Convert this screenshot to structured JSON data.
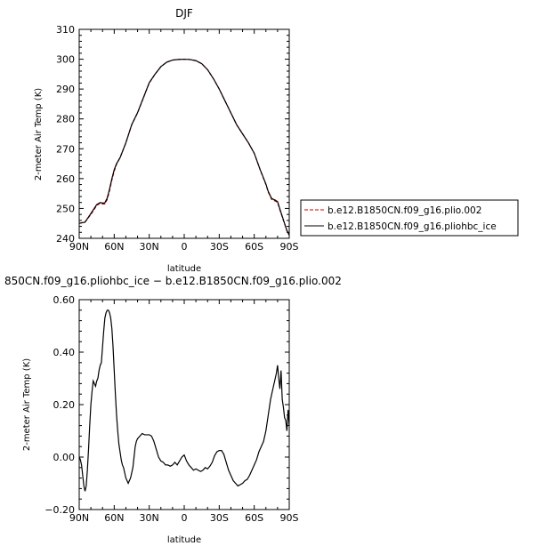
{
  "chart_data": [
    {
      "type": "line",
      "title": "DJF",
      "xlabel": "latitude",
      "ylabel": "2-meter Air Temp (K)",
      "xlim": [
        90,
        -90
      ],
      "ylim": [
        240,
        310
      ],
      "x_ticks": [
        {
          "value": 90,
          "label": "90N"
        },
        {
          "value": 60,
          "label": "60N"
        },
        {
          "value": 30,
          "label": "30N"
        },
        {
          "value": 0,
          "label": "0"
        },
        {
          "value": -30,
          "label": "30S"
        },
        {
          "value": -60,
          "label": "60S"
        },
        {
          "value": -90,
          "label": "90S"
        }
      ],
      "y_ticks": [
        240,
        250,
        260,
        270,
        280,
        290,
        300,
        310
      ],
      "grid": false,
      "legend_position": "right",
      "series": [
        {
          "name": "b.e12.B1850CN.f09_g16.plio.002",
          "color": "#cc0000",
          "dash": "dashed",
          "x": [
            90,
            85,
            80,
            75,
            72,
            70,
            68,
            66,
            64,
            62,
            60,
            58,
            55,
            50,
            45,
            40,
            35,
            30,
            25,
            20,
            15,
            10,
            5,
            0,
            -5,
            -10,
            -15,
            -20,
            -25,
            -30,
            -35,
            -40,
            -45,
            -50,
            -55,
            -60,
            -65,
            -70,
            -72,
            -75,
            -78,
            -80,
            -82,
            -85,
            -88,
            -90
          ],
          "y": [
            245.0,
            245.5,
            248.0,
            251.0,
            251.8,
            251.5,
            251.5,
            253.0,
            256.0,
            259.5,
            262.5,
            264.8,
            267.0,
            272.0,
            278.0,
            282.0,
            287.0,
            292.0,
            295.0,
            297.5,
            299.0,
            299.7,
            299.9,
            300.0,
            299.9,
            299.5,
            298.5,
            296.5,
            293.5,
            290.0,
            286.0,
            282.0,
            278.0,
            275.0,
            272.0,
            268.5,
            263.0,
            258.0,
            255.5,
            253.0,
            252.5,
            252.0,
            249.5,
            246.0,
            242.5,
            241.0
          ]
        },
        {
          "name": "b.e12.B1850CN.f09_g16.pliohbc_ice",
          "color": "#000000",
          "dash": "solid",
          "x": [
            90,
            85,
            80,
            75,
            72,
            70,
            68,
            66,
            64,
            62,
            60,
            58,
            55,
            50,
            45,
            40,
            35,
            30,
            25,
            20,
            15,
            10,
            5,
            0,
            -5,
            -10,
            -15,
            -20,
            -25,
            -30,
            -35,
            -40,
            -45,
            -50,
            -55,
            -60,
            -65,
            -70,
            -72,
            -75,
            -78,
            -80,
            -82,
            -85,
            -88,
            -90
          ],
          "y": [
            245.0,
            245.4,
            248.3,
            251.3,
            252.0,
            251.8,
            251.9,
            253.5,
            256.5,
            260.0,
            263.0,
            265.0,
            267.0,
            272.0,
            278.1,
            282.1,
            287.1,
            292.1,
            295.0,
            297.5,
            299.0,
            299.7,
            299.9,
            300.0,
            299.9,
            299.5,
            298.5,
            296.5,
            293.5,
            290.0,
            286.0,
            282.0,
            278.0,
            275.0,
            272.0,
            268.5,
            263.1,
            258.2,
            255.7,
            253.3,
            252.8,
            252.3,
            249.8,
            246.2,
            242.6,
            241.1
          ]
        }
      ]
    },
    {
      "type": "line",
      "title": "850CN.f09_g16.pliohbc_ice − b.e12.B1850CN.f09_g16.plio.002",
      "xlabel": "latitude",
      "ylabel": "2-meter Air Temp (K)",
      "xlim": [
        90,
        -90
      ],
      "ylim": [
        -0.2,
        0.6
      ],
      "x_ticks": [
        {
          "value": 90,
          "label": "90N"
        },
        {
          "value": 60,
          "label": "60N"
        },
        {
          "value": 30,
          "label": "30N"
        },
        {
          "value": 0,
          "label": "0"
        },
        {
          "value": -30,
          "label": "30S"
        },
        {
          "value": -60,
          "label": "60S"
        },
        {
          "value": -90,
          "label": "90S"
        }
      ],
      "y_ticks": [
        {
          "value": -0.2,
          "label": "−0.20"
        },
        {
          "value": 0.0,
          "label": "0.00"
        },
        {
          "value": 0.2,
          "label": "0.20"
        },
        {
          "value": 0.4,
          "label": "0.40"
        },
        {
          "value": 0.6,
          "label": "0.60"
        }
      ],
      "grid": false,
      "series": [
        {
          "color": "#000000",
          "x": [
            90,
            89,
            88,
            87,
            86,
            85,
            84,
            83,
            82,
            81,
            80,
            79,
            78,
            77,
            76,
            75,
            74,
            73,
            72,
            71,
            70,
            69,
            68,
            67,
            66,
            65,
            64,
            63,
            62,
            61,
            60,
            59,
            58,
            57,
            56,
            55,
            54,
            53,
            52,
            51,
            50,
            49,
            48,
            47,
            46,
            45,
            44,
            43,
            42,
            41,
            40,
            38,
            36,
            34,
            32,
            30,
            28,
            26,
            24,
            22,
            20,
            18,
            16,
            14,
            12,
            10,
            8,
            6,
            4,
            2,
            0,
            -2,
            -4,
            -6,
            -8,
            -10,
            -12,
            -14,
            -16,
            -18,
            -20,
            -22,
            -24,
            -26,
            -28,
            -30,
            -32,
            -34,
            -36,
            -38,
            -40,
            -42,
            -44,
            -46,
            -48,
            -50,
            -52,
            -54,
            -56,
            -58,
            -60,
            -62,
            -64,
            -66,
            -68,
            -70,
            -72,
            -74,
            -76,
            -78,
            -79,
            -80,
            -81,
            -82,
            -83,
            -84,
            -85,
            -86,
            -87,
            -88,
            -89,
            -90
          ],
          "y": [
            0.0,
            -0.01,
            -0.03,
            -0.07,
            -0.11,
            -0.13,
            -0.11,
            -0.05,
            0.03,
            0.12,
            0.2,
            0.25,
            0.29,
            0.28,
            0.27,
            0.29,
            0.3,
            0.33,
            0.35,
            0.36,
            0.42,
            0.48,
            0.53,
            0.55,
            0.56,
            0.56,
            0.55,
            0.53,
            0.49,
            0.42,
            0.33,
            0.24,
            0.16,
            0.1,
            0.05,
            0.02,
            -0.01,
            -0.03,
            -0.04,
            -0.06,
            -0.08,
            -0.09,
            -0.1,
            -0.09,
            -0.08,
            -0.06,
            -0.04,
            0.0,
            0.04,
            0.06,
            0.07,
            0.08,
            0.09,
            0.085,
            0.085,
            0.085,
            0.08,
            0.06,
            0.03,
            0.0,
            -0.015,
            -0.02,
            -0.03,
            -0.03,
            -0.035,
            -0.03,
            -0.02,
            -0.03,
            -0.015,
            0.0,
            0.008,
            -0.015,
            -0.03,
            -0.04,
            -0.05,
            -0.045,
            -0.05,
            -0.055,
            -0.05,
            -0.04,
            -0.045,
            -0.035,
            -0.02,
            0.005,
            0.02,
            0.025,
            0.025,
            0.01,
            -0.02,
            -0.05,
            -0.07,
            -0.09,
            -0.1,
            -0.11,
            -0.105,
            -0.1,
            -0.09,
            -0.085,
            -0.07,
            -0.05,
            -0.03,
            -0.01,
            0.02,
            0.04,
            0.06,
            0.1,
            0.16,
            0.22,
            0.26,
            0.3,
            0.32,
            0.35,
            0.3,
            0.26,
            0.33,
            0.22,
            0.19,
            0.15,
            0.14,
            0.1,
            0.18,
            0.12
          ]
        }
      ]
    }
  ]
}
